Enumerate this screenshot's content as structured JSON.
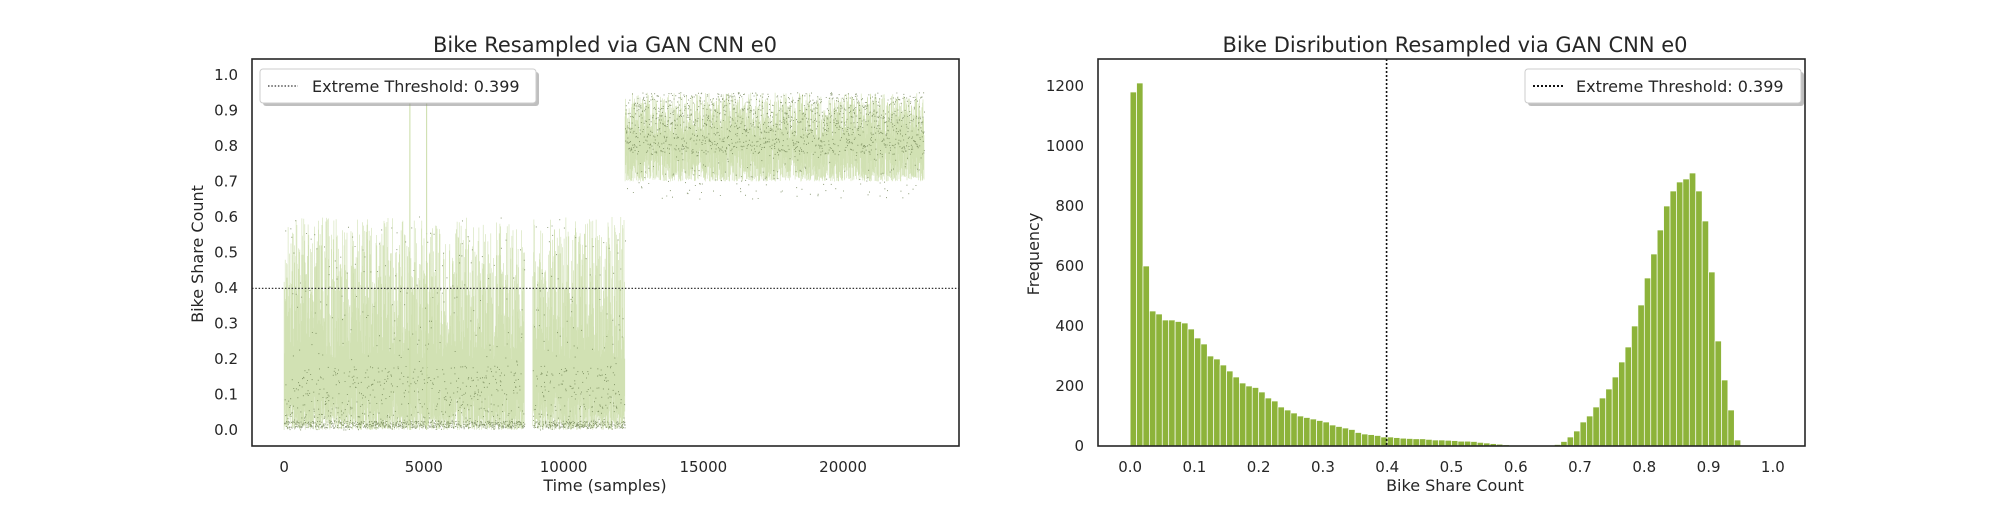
{
  "chart_data": [
    {
      "type": "scatter",
      "title": "Bike Resampled via GAN CNN e0",
      "xlabel": "Time (samples)",
      "ylabel": "Bike Share Count",
      "xlim": [
        -1150,
        24150
      ],
      "ylim": [
        -0.045,
        1.045
      ],
      "xticks": [
        0,
        5000,
        10000,
        15000,
        20000
      ],
      "xtick_labels": [
        "0",
        "5000",
        "10000",
        "15000",
        "20000"
      ],
      "yticks": [
        0.0,
        0.1,
        0.2,
        0.3,
        0.4,
        0.5,
        0.6,
        0.7,
        0.8,
        0.9,
        1.0
      ],
      "ytick_labels": [
        "0.0",
        "0.1",
        "0.2",
        "0.3",
        "0.4",
        "0.5",
        "0.6",
        "0.7",
        "0.8",
        "0.9",
        "1.0"
      ],
      "threshold": 0.399,
      "legend": {
        "label": "Extreme Threshold: 0.399",
        "loc": "upper-left"
      },
      "grid": false,
      "colors": {
        "line": "#c9dca6",
        "point": "#6b7d4f",
        "threshold": "#333333"
      },
      "segments": [
        {
          "x_start": 0,
          "x_end": 8600,
          "low": [
            0.0,
            0.12
          ],
          "high": [
            0.2,
            0.6
          ],
          "peak": 0.52
        },
        {
          "x_start": 8900,
          "x_end": 12200,
          "low": [
            0.0,
            0.12
          ],
          "high": [
            0.2,
            0.6
          ],
          "peak": 0.6
        },
        {
          "x_start": 12200,
          "x_end": 22900,
          "low": [
            0.7,
            0.82
          ],
          "high": [
            0.82,
            0.95
          ],
          "peak": 0.92
        }
      ],
      "spikes": [
        {
          "x": 4500,
          "y": 0.93
        },
        {
          "x": 5100,
          "y": 0.92
        }
      ]
    },
    {
      "type": "bar",
      "title": "Bike Disribution Resampled via GAN CNN e0",
      "xlabel": "Bike Share Count",
      "ylabel": "Frequency",
      "xlim": [
        -0.05,
        1.05
      ],
      "ylim": [
        0,
        1290
      ],
      "xticks": [
        0.0,
        0.1,
        0.2,
        0.3,
        0.4,
        0.5,
        0.6,
        0.7,
        0.8,
        0.9,
        1.0
      ],
      "xtick_labels": [
        "0.0",
        "0.1",
        "0.2",
        "0.3",
        "0.4",
        "0.5",
        "0.6",
        "0.7",
        "0.8",
        "0.9",
        "1.0"
      ],
      "yticks": [
        0,
        200,
        400,
        600,
        800,
        1000,
        1200
      ],
      "ytick_labels": [
        "0",
        "200",
        "400",
        "600",
        "800",
        "1000",
        "1200"
      ],
      "threshold": 0.399,
      "legend": {
        "label": "Extreme Threshold: 0.399",
        "loc": "upper-right"
      },
      "grid": false,
      "colors": {
        "bar": "#8db33a",
        "threshold": "#111111"
      },
      "bin_start": 0.0,
      "bin_width": 0.01,
      "values": [
        1180,
        1210,
        600,
        450,
        440,
        420,
        420,
        415,
        410,
        390,
        360,
        340,
        300,
        290,
        270,
        250,
        230,
        210,
        200,
        195,
        180,
        160,
        150,
        130,
        120,
        110,
        100,
        95,
        90,
        85,
        80,
        70,
        65,
        60,
        55,
        45,
        40,
        38,
        35,
        30,
        30,
        28,
        26,
        25,
        24,
        24,
        22,
        20,
        20,
        19,
        18,
        16,
        16,
        15,
        12,
        10,
        8,
        6,
        4,
        2,
        0,
        0,
        0,
        0,
        0,
        2,
        5,
        15,
        30,
        50,
        80,
        100,
        130,
        160,
        190,
        230,
        280,
        330,
        400,
        470,
        560,
        640,
        720,
        800,
        850,
        880,
        890,
        910,
        850,
        750,
        580,
        350,
        220,
        120,
        20,
        0,
        0,
        0,
        0,
        0
      ]
    }
  ]
}
